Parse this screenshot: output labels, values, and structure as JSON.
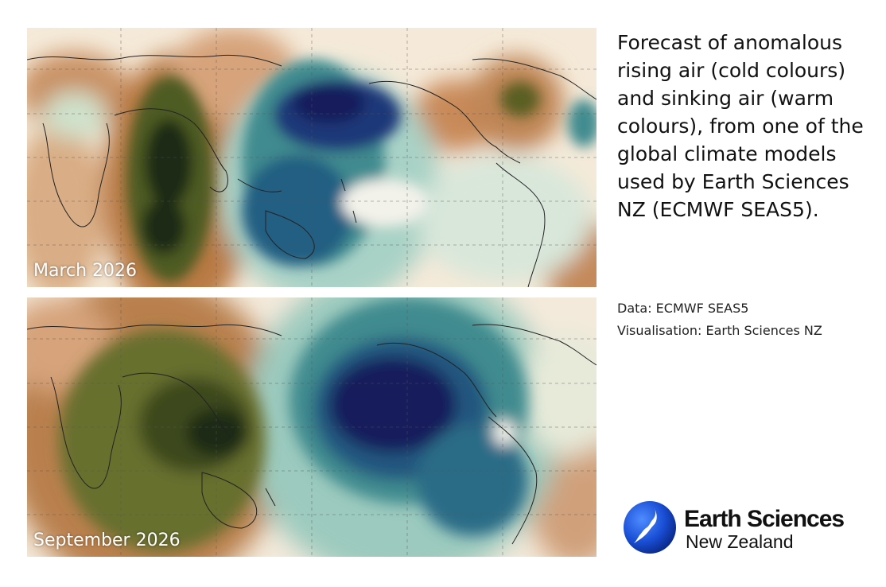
{
  "panels": [
    {
      "label": "March 2026"
    },
    {
      "label": "September 2026"
    }
  ],
  "caption": "Forecast of anomalous rising air (cold colours) and sinking air (warm colours), from one of the global climate models used by Earth Sciences NZ (ECMWF SEAS5).",
  "credits": {
    "data": "Data: ECMWF SEAS5",
    "visualisation": "Visualisation: Earth Sciences NZ"
  },
  "logo": {
    "line1": "Earth Sciences",
    "line2": "New Zealand"
  },
  "palette": {
    "sinking_strong": "#1f2b12",
    "sinking_mid": "#5f6b2c",
    "sinking_light": "#c08a5a",
    "neutral": "#f7efe3",
    "rising_light": "#b9d9c8",
    "rising_mid": "#2f7d84",
    "rising_strong": "#121a5c"
  }
}
